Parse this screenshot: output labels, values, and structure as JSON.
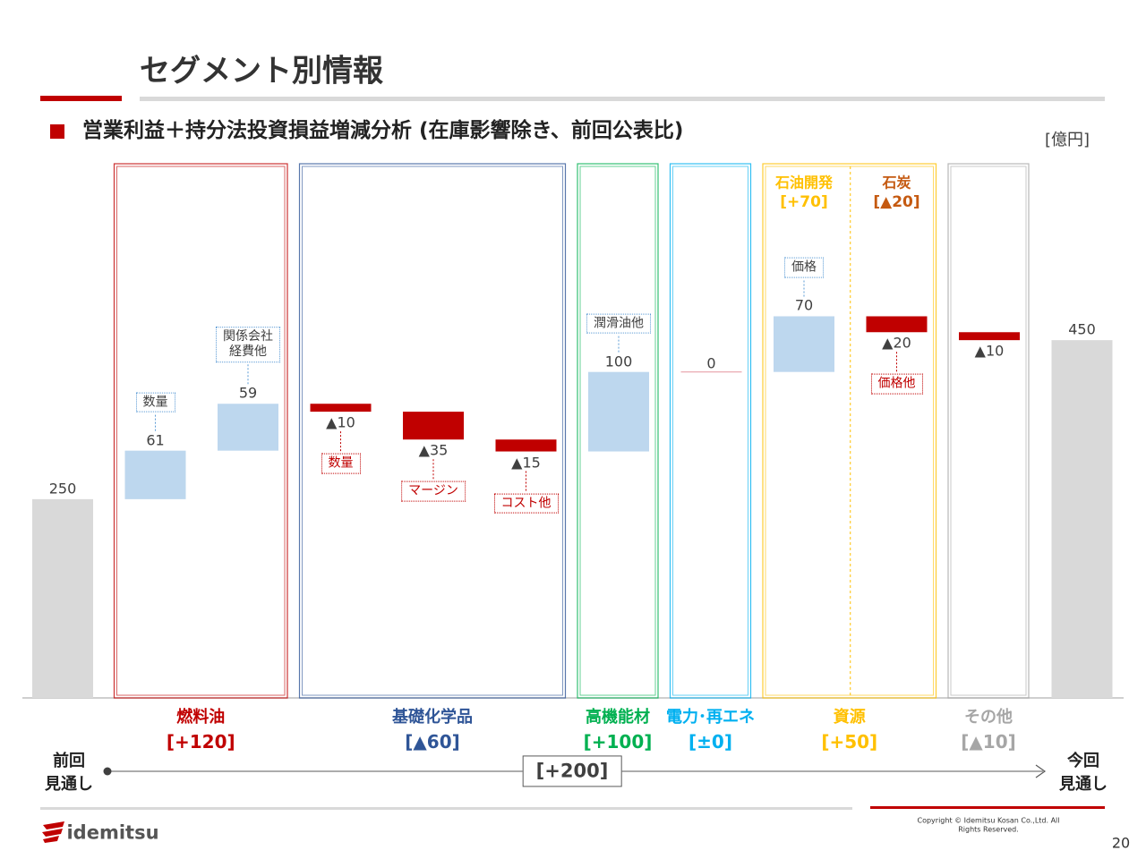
{
  "header": {
    "title": "セグメント別情報",
    "subtitle": "営業利益＋持分法投資損益増減分析 (在庫影響除き、前回公表比)",
    "unit": "[億円]"
  },
  "chart_data": {
    "type": "waterfall",
    "categories": [
      "前回\n見通し",
      "数量",
      "関係会社\n経費他",
      "数量",
      "マージン",
      "コスト他",
      "潤滑油他",
      null,
      "価格",
      "価格他",
      null,
      "今回\n見通し"
    ],
    "values": [
      250,
      61,
      59,
      -10,
      -35,
      -15,
      100,
      0,
      70,
      -20,
      -10,
      450
    ],
    "value_labels": [
      "250",
      "61",
      "59",
      "▲10",
      "▲35",
      "▲15",
      "100",
      "0",
      "70",
      "▲20",
      "▲10",
      "450"
    ],
    "measures": [
      "absolute",
      "relative",
      "relative",
      "relative",
      "relative",
      "relative",
      "relative",
      "relative",
      "relative",
      "relative",
      "relative",
      "total"
    ],
    "colors": {
      "total": "#d9d9d9",
      "increase": "#bdd7ee",
      "decrease": "#c00000",
      "zero": "#e8a0aa"
    },
    "ylim": [
      0,
      700
    ],
    "segments": [
      {
        "name": "燃料油",
        "change_label": "[+120]",
        "color": "#c00000",
        "bars": 2
      },
      {
        "name": "基礎化学品",
        "change_label": "[▲60]",
        "color": "#2f5597",
        "bars": 3
      },
      {
        "name": "高機能材",
        "change_label": "[+100]",
        "color": "#00b050",
        "bars": 1
      },
      {
        "name": "電力･再エネ",
        "change_label": "[±0]",
        "color": "#00b0f0",
        "bars": 1
      },
      {
        "name": "資源",
        "change_label": "[+50]",
        "color": "#ffc000",
        "bars": 2,
        "sub": [
          {
            "name": "石油開発",
            "change_label": "[+70]",
            "color": "#ffc000"
          },
          {
            "name": "石炭",
            "change_label": "[▲20]",
            "color": "#c55a11"
          }
        ]
      },
      {
        "name": "その他",
        "change_label": "[▲10]",
        "color": "#a6a6a6",
        "bars": 1
      }
    ],
    "total_change_label": "[+200]"
  },
  "footer": {
    "logo": "idemitsu",
    "copyright": "Copyright © Idemitsu Kosan Co.,Ltd.  All Rights Reserved.",
    "page": "20"
  }
}
